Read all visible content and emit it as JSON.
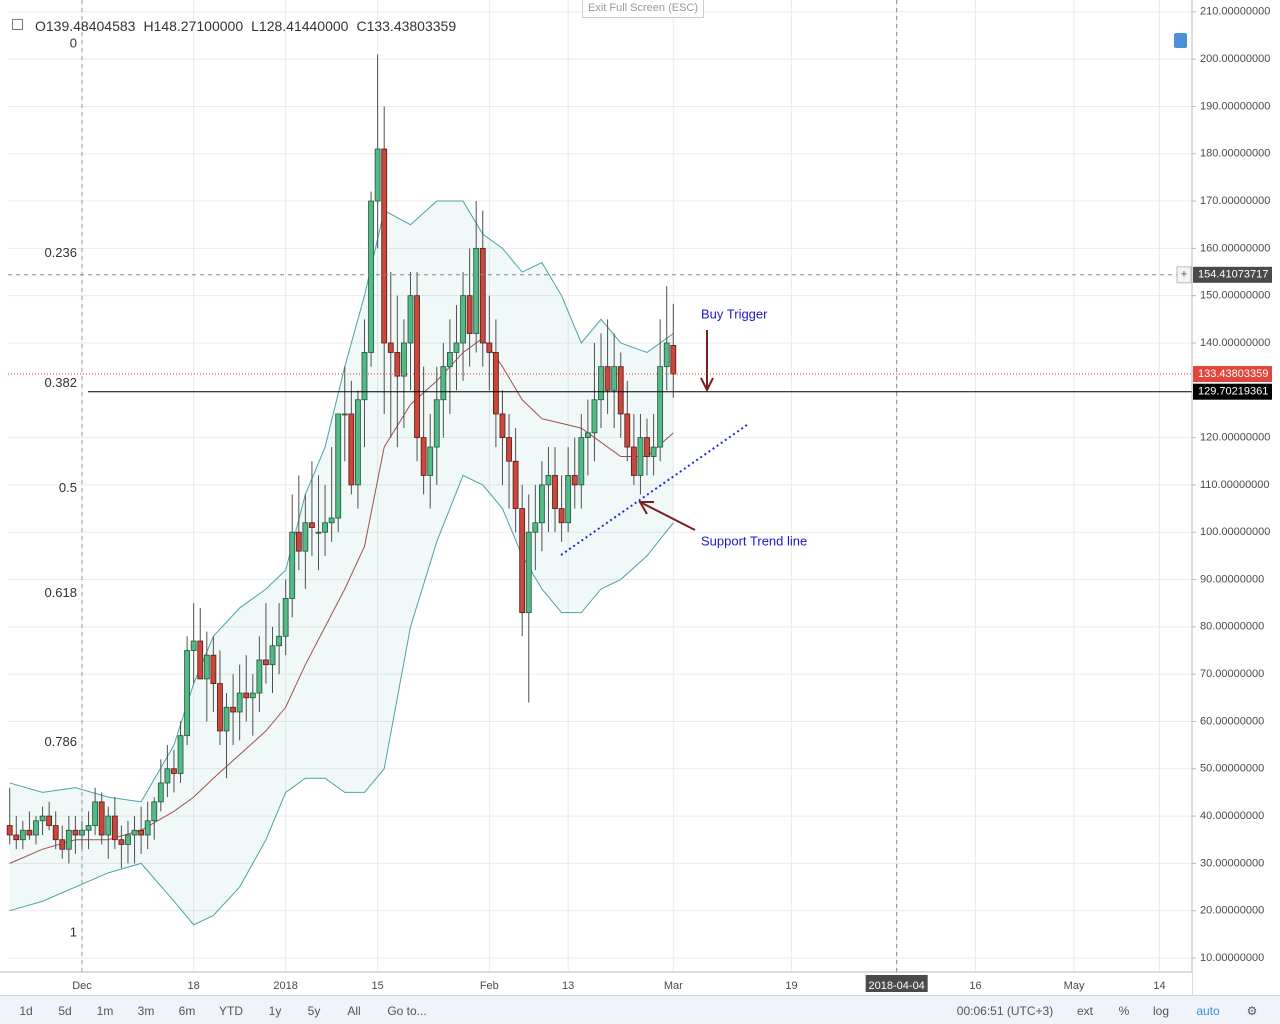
{
  "chart_data": {
    "type": "candlestick",
    "legend": [
      {
        "key": "O",
        "value": "139.48404583"
      },
      {
        "key": "H",
        "value": "148.27100000"
      },
      {
        "key": "L",
        "value": "128.41440000"
      },
      {
        "key": "C",
        "value": "133.43803359"
      }
    ],
    "exit_fullscreen": "Exit Full Screen (ESC)",
    "xlim": [
      -11.26,
      168.95
    ],
    "ylim": [
      7.04,
      212.5
    ],
    "xticks": [
      {
        "value": 0,
        "label": "Dec"
      },
      {
        "value": 17,
        "label": "18"
      },
      {
        "value": 31,
        "label": "2018"
      },
      {
        "value": 45,
        "label": "15"
      },
      {
        "value": 62,
        "label": "Feb"
      },
      {
        "value": 74,
        "label": "13"
      },
      {
        "value": 90,
        "label": "Mar"
      },
      {
        "value": 108,
        "label": "19"
      },
      {
        "value": 124,
        "label": "2018-04-04"
      },
      {
        "value": 136,
        "label": "16"
      },
      {
        "value": 151,
        "label": "May"
      },
      {
        "value": 164,
        "label": "14"
      }
    ],
    "yticks": [
      {
        "value": 10,
        "label": "10.00000000"
      },
      {
        "value": 20,
        "label": "20.00000000"
      },
      {
        "value": 30,
        "label": "30.00000000"
      },
      {
        "value": 40,
        "label": "40.00000000"
      },
      {
        "value": 50,
        "label": "50.00000000"
      },
      {
        "value": 60,
        "label": "60.00000000"
      },
      {
        "value": 70,
        "label": "70.00000000"
      },
      {
        "value": 80,
        "label": "80.00000000"
      },
      {
        "value": 90,
        "label": "90.00000000"
      },
      {
        "value": 100,
        "label": "100.00000000"
      },
      {
        "value": 110,
        "label": "110.00000000"
      },
      {
        "value": 120,
        "label": "120.00000000"
      },
      {
        "value": 140,
        "label": "140.00000000"
      },
      {
        "value": 150,
        "label": "150.00000000"
      },
      {
        "value": 160,
        "label": "160.00000000"
      },
      {
        "value": 170,
        "label": "170.00000000"
      },
      {
        "value": 180,
        "label": "180.00000000"
      },
      {
        "value": 190,
        "label": "190.00000000"
      },
      {
        "value": 200,
        "label": "200.00000000"
      },
      {
        "value": 210,
        "label": "210.00000000"
      }
    ],
    "grid": true,
    "up_color": "#53b987",
    "down_color": "#c9473b",
    "x": [
      -11,
      -10,
      -9,
      -8,
      -7,
      -6,
      -5,
      -4,
      -3,
      -2,
      -1,
      0,
      1,
      2,
      3,
      4,
      5,
      6,
      7,
      8,
      9,
      10,
      11,
      12,
      13,
      14,
      15,
      16,
      17,
      18,
      19,
      20,
      21,
      22,
      23,
      24,
      25,
      26,
      27,
      28,
      29,
      30,
      31,
      32,
      33,
      34,
      35,
      36,
      37,
      38,
      39,
      40,
      41,
      42,
      43,
      44,
      45,
      46,
      47,
      48,
      49,
      50,
      51,
      52,
      53,
      54,
      55,
      56,
      57,
      58,
      59,
      60,
      61,
      62,
      63,
      64,
      65,
      66,
      67,
      68,
      69,
      70,
      71,
      72,
      73,
      74,
      75,
      76,
      77,
      78,
      79,
      80,
      81,
      82,
      83,
      84,
      85,
      86,
      87,
      88,
      89,
      90
    ],
    "candles": [
      [
        38,
        46,
        34,
        36
      ],
      [
        36,
        40,
        33,
        35
      ],
      [
        35,
        39,
        33,
        37
      ],
      [
        37,
        41,
        35,
        36
      ],
      [
        36,
        40,
        34,
        39
      ],
      [
        39,
        42,
        36,
        40
      ],
      [
        40,
        43,
        37,
        38
      ],
      [
        38,
        41,
        33,
        35
      ],
      [
        35,
        38,
        31,
        33
      ],
      [
        33,
        40,
        30,
        37
      ],
      [
        37,
        40,
        32,
        36
      ],
      [
        36,
        39,
        33,
        37
      ],
      [
        37,
        41,
        33,
        38
      ],
      [
        38,
        46,
        36,
        43
      ],
      [
        43,
        45,
        34,
        36
      ],
      [
        36,
        42,
        31,
        40
      ],
      [
        40,
        44,
        33,
        35
      ],
      [
        35,
        38,
        29,
        34
      ],
      [
        34,
        39,
        30,
        36
      ],
      [
        36,
        40,
        30,
        37
      ],
      [
        37,
        42,
        32,
        36
      ],
      [
        36,
        43,
        33,
        39
      ],
      [
        39,
        44,
        35,
        43
      ],
      [
        43,
        52,
        41,
        47
      ],
      [
        47,
        55,
        44,
        50
      ],
      [
        50,
        54,
        45,
        49
      ],
      [
        49,
        60,
        47,
        57
      ],
      [
        57,
        78,
        55,
        75
      ],
      [
        75,
        85,
        68,
        77
      ],
      [
        77,
        84,
        70,
        69
      ],
      [
        69,
        79,
        60,
        74
      ],
      [
        74,
        78,
        62,
        68
      ],
      [
        68,
        75,
        55,
        58
      ],
      [
        58,
        66,
        48,
        63
      ],
      [
        63,
        70,
        55,
        62
      ],
      [
        62,
        72,
        56,
        66
      ],
      [
        66,
        74,
        60,
        65
      ],
      [
        65,
        70,
        57,
        66
      ],
      [
        66,
        78,
        62,
        73
      ],
      [
        73,
        85,
        68,
        72
      ],
      [
        72,
        80,
        66,
        76
      ],
      [
        76,
        85,
        70,
        78
      ],
      [
        78,
        90,
        74,
        86
      ],
      [
        86,
        108,
        82,
        100
      ],
      [
        100,
        112,
        92,
        96
      ],
      [
        96,
        108,
        88,
        102
      ],
      [
        102,
        115,
        95,
        101
      ],
      [
        100,
        112,
        92,
        100
      ],
      [
        100,
        110,
        95,
        102
      ],
      [
        102,
        118,
        98,
        103
      ],
      [
        103,
        125,
        100,
        125
      ],
      [
        125,
        135,
        115,
        125
      ],
      [
        125,
        132,
        108,
        110
      ],
      [
        110,
        130,
        105,
        128
      ],
      [
        128,
        145,
        118,
        138
      ],
      [
        138,
        172,
        135,
        170
      ],
      [
        170,
        201,
        160,
        181
      ],
      [
        181,
        190,
        125,
        140
      ],
      [
        140,
        155,
        120,
        138
      ],
      [
        138,
        150,
        118,
        133
      ],
      [
        133,
        145,
        122,
        140
      ],
      [
        140,
        155,
        130,
        150
      ],
      [
        150,
        155,
        115,
        120
      ],
      [
        120,
        135,
        108,
        112
      ],
      [
        112,
        125,
        105,
        118
      ],
      [
        118,
        135,
        110,
        128
      ],
      [
        128,
        140,
        120,
        135
      ],
      [
        135,
        145,
        125,
        138
      ],
      [
        138,
        148,
        130,
        140
      ],
      [
        140,
        155,
        132,
        150
      ],
      [
        150,
        160,
        135,
        142
      ],
      [
        142,
        170,
        138,
        160
      ],
      [
        160,
        168,
        135,
        140
      ],
      [
        140,
        150,
        130,
        138
      ],
      [
        138,
        145,
        118,
        125
      ],
      [
        125,
        130,
        110,
        120
      ],
      [
        120,
        125,
        105,
        115
      ],
      [
        115,
        122,
        100,
        105
      ],
      [
        105,
        110,
        78,
        83
      ],
      [
        83,
        108,
        64,
        100
      ],
      [
        100,
        110,
        92,
        102
      ],
      [
        102,
        115,
        96,
        110
      ],
      [
        110,
        118,
        100,
        112
      ],
      [
        112,
        118,
        100,
        105
      ],
      [
        105,
        112,
        98,
        102
      ],
      [
        102,
        118,
        100,
        112
      ],
      [
        112,
        120,
        105,
        110
      ],
      [
        110,
        125,
        105,
        120
      ],
      [
        120,
        128,
        112,
        121
      ],
      [
        121,
        140,
        115,
        128
      ],
      [
        128,
        142,
        122,
        135
      ],
      [
        135,
        145,
        125,
        130
      ],
      [
        130,
        142,
        122,
        135
      ],
      [
        135,
        138,
        120,
        125
      ],
      [
        125,
        132,
        115,
        118
      ],
      [
        118,
        125,
        110,
        112
      ],
      [
        112,
        125,
        108,
        120
      ],
      [
        120,
        124,
        112,
        116
      ],
      [
        116,
        125,
        112,
        118
      ],
      [
        118,
        145,
        115,
        135
      ],
      [
        135,
        152,
        130,
        140
      ],
      [
        139.48404583,
        148.271,
        128.4144,
        133.43803359
      ]
    ],
    "bands": {
      "x": [
        -11,
        -6,
        -1,
        4,
        9,
        14,
        17,
        20,
        24,
        28,
        31,
        34,
        37,
        40,
        43,
        46,
        50,
        54,
        58,
        61,
        64,
        67,
        70,
        73,
        76,
        79,
        82,
        86,
        90
      ],
      "upper": [
        47,
        45,
        46,
        44,
        43,
        55,
        68,
        78,
        84,
        88,
        92,
        108,
        118,
        135,
        150,
        168,
        165,
        170,
        170,
        163,
        160,
        155,
        157,
        150,
        140,
        145,
        140,
        138,
        142
      ],
      "middle": [
        30,
        33,
        35,
        35,
        37,
        41,
        44,
        48,
        53,
        58,
        63,
        72,
        80,
        88,
        97,
        118,
        127,
        132,
        138,
        141,
        135,
        128,
        124,
        123,
        122,
        119,
        116,
        116,
        121
      ],
      "lower": [
        20,
        22,
        25,
        28,
        30,
        22,
        17,
        19,
        25,
        35,
        45,
        48,
        48,
        45,
        45,
        50,
        80,
        98,
        112,
        110,
        105,
        95,
        88,
        83,
        83,
        88,
        90,
        95,
        102
      ],
      "band_color": "#4aa3a3",
      "middle_color": "#a0524a"
    },
    "fib": {
      "high": 203.2,
      "low": 15.3,
      "levels": [
        0,
        0.236,
        0.382,
        0.5,
        0.618,
        0.786,
        1
      ]
    },
    "crosshair": {
      "x": 124,
      "y": 154.41073717
    },
    "marker_x": 0,
    "price_lines": [
      {
        "value": 133.43803359,
        "color": "#e0463c",
        "style": "dotted"
      },
      {
        "value": 129.70219361,
        "color": "#000000",
        "style": "solid"
      }
    ],
    "annotations": [
      {
        "text": "Buy Trigger"
      },
      {
        "text": "Support Trend line"
      }
    ],
    "toolbar": {
      "ranges": [
        "1d",
        "5d",
        "1m",
        "3m",
        "6m",
        "YTD",
        "1y",
        "5y",
        "All"
      ],
      "goto": "Go to...",
      "time": "00:06:51 (UTC+3)",
      "options": [
        "ext",
        "%",
        "log",
        "auto"
      ]
    }
  }
}
